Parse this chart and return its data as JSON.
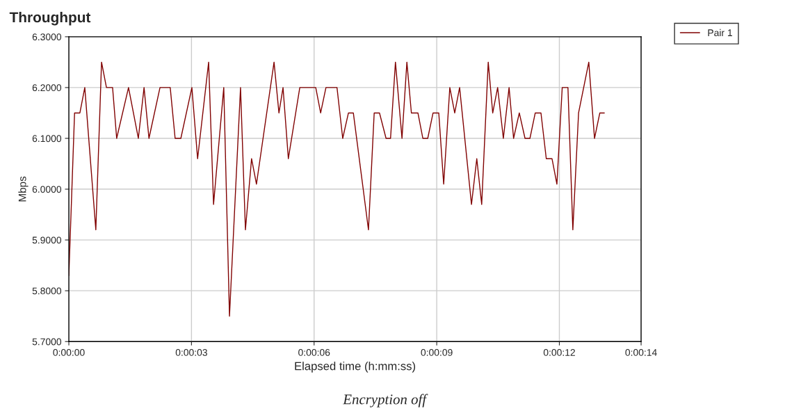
{
  "chart_data": {
    "type": "line",
    "title": "Throughput",
    "xlabel": "Elapsed time (h:mm:ss)",
    "ylabel": "Mbps",
    "annotations": [
      "Encryption off"
    ],
    "x": [
      0.0,
      0.14,
      0.27,
      0.39,
      0.66,
      0.8,
      0.92,
      1.07,
      1.17,
      1.46,
      1.7,
      1.84,
      1.96,
      2.23,
      2.48,
      2.6,
      2.74,
      3.01,
      3.15,
      3.42,
      3.54,
      3.79,
      3.93,
      4.2,
      4.32,
      4.47,
      4.59,
      5.02,
      5.14,
      5.24,
      5.37,
      5.65,
      6.04,
      6.16,
      6.29,
      6.56,
      6.7,
      6.84,
      6.96,
      7.33,
      7.47,
      7.6,
      7.76,
      7.87,
      7.99,
      8.15,
      8.27,
      8.38,
      8.54,
      8.66,
      8.78,
      8.91,
      9.05,
      9.17,
      9.32,
      9.44,
      9.56,
      9.85,
      9.98,
      10.1,
      10.26,
      10.37,
      10.49,
      10.63,
      10.77,
      10.88,
      11.02,
      11.16,
      11.28,
      11.41,
      11.55,
      11.68,
      11.82,
      11.94,
      12.07,
      12.21,
      12.33,
      12.47,
      12.72,
      12.86,
      12.99,
      13.1
    ],
    "series": [
      {
        "name": "Pair 1",
        "color": "#800000",
        "values": [
          5.83,
          6.15,
          6.15,
          6.2,
          5.92,
          6.25,
          6.2,
          6.2,
          6.1,
          6.2,
          6.1,
          6.2,
          6.1,
          6.2,
          6.2,
          6.1,
          6.1,
          6.2,
          6.06,
          6.25,
          5.97,
          6.2,
          5.75,
          6.2,
          5.92,
          6.06,
          6.01,
          6.25,
          6.15,
          6.2,
          6.06,
          6.2,
          6.2,
          6.15,
          6.2,
          6.2,
          6.1,
          6.15,
          6.15,
          5.92,
          6.15,
          6.15,
          6.1,
          6.1,
          6.25,
          6.1,
          6.25,
          6.15,
          6.15,
          6.1,
          6.1,
          6.15,
          6.15,
          6.01,
          6.2,
          6.15,
          6.2,
          5.97,
          6.06,
          5.97,
          6.25,
          6.15,
          6.2,
          6.1,
          6.2,
          6.1,
          6.15,
          6.1,
          6.1,
          6.15,
          6.15,
          6.06,
          6.06,
          6.01,
          6.2,
          6.2,
          5.92,
          6.15,
          6.25,
          6.1,
          6.15,
          6.15
        ]
      }
    ],
    "xlim": [
      0,
      14
    ],
    "xticks": [
      {
        "value": 0,
        "label": "0:00:00"
      },
      {
        "value": 3,
        "label": "0:00:03"
      },
      {
        "value": 6,
        "label": "0:00:06"
      },
      {
        "value": 9,
        "label": "0:00:09"
      },
      {
        "value": 12,
        "label": "0:00:12"
      },
      {
        "value": 14,
        "label": "0:00:14"
      }
    ],
    "ylim": [
      5.7,
      6.3
    ],
    "yticks": [
      {
        "value": 5.7,
        "label": "5.7000"
      },
      {
        "value": 5.8,
        "label": "5.8000"
      },
      {
        "value": 5.9,
        "label": "5.9000"
      },
      {
        "value": 6.0,
        "label": "6.0000"
      },
      {
        "value": 6.1,
        "label": "6.1000"
      },
      {
        "value": 6.2,
        "label": "6.2000"
      },
      {
        "value": 6.3,
        "label": "6.3000"
      }
    ],
    "grid": true,
    "legend": "right",
    "marker": "none",
    "line_style": "solid"
  }
}
